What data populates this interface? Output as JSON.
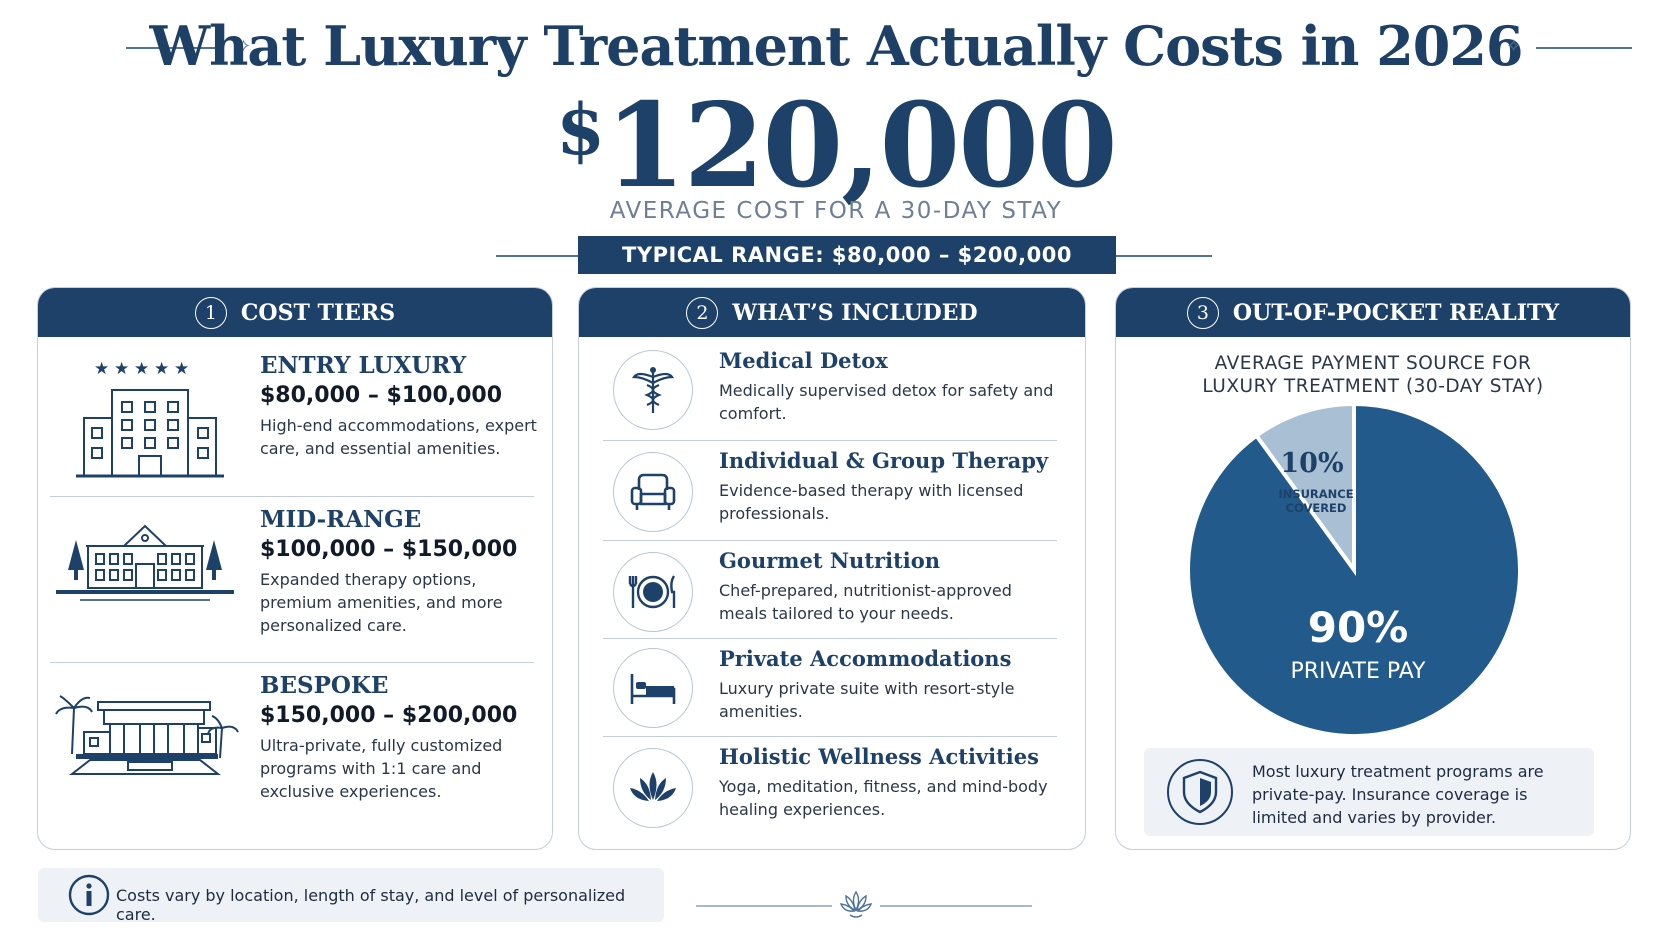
{
  "header": {
    "title": "What Luxury Treatment Actually Costs in 2026",
    "currency_symbol": "$",
    "amount": "120,000",
    "amount_label": "AVERAGE COST FOR A 30-DAY STAY",
    "range_label": "TYPICAL RANGE: $80,000 – $200,000"
  },
  "colors": {
    "navy": "#1e4169",
    "light_blue": "#a9c0d4",
    "pie_main": "#235a8c",
    "panel_border": "#c3cfdc"
  },
  "cost_tiers": {
    "number": "1",
    "heading": "COST TIERS",
    "tiers": [
      {
        "name": "ENTRY LUXURY",
        "price": "$80,000 – $100,000",
        "description": "High-end accommodations, expert care, and essential amenities.",
        "icon": "hotel-building-icon"
      },
      {
        "name": "MID-RANGE",
        "price": "$100,000 – $150,000",
        "description": "Expanded therapy options, premium amenities, and more personalized care.",
        "icon": "estate-mansion-icon"
      },
      {
        "name": "BESPOKE",
        "price": "$150,000 – $200,000",
        "description": "Ultra-private, fully customized programs with 1:1 care and exclusive experiences.",
        "icon": "resort-villa-icon"
      }
    ]
  },
  "included": {
    "number": "2",
    "heading": "WHAT’S INCLUDED",
    "items": [
      {
        "title": "Medical Detox",
        "description": "Medically supervised detox for safety and comfort.",
        "icon": "caduceus-icon"
      },
      {
        "title": "Individual & Group Therapy",
        "description": "Evidence-based therapy with licensed professionals.",
        "icon": "armchair-icon"
      },
      {
        "title": "Gourmet Nutrition",
        "description": "Chef-prepared, nutritionist-approved meals tailored to your needs.",
        "icon": "plate-utensils-icon"
      },
      {
        "title": "Private Accommodations",
        "description": "Luxury private suite with resort-style amenities.",
        "icon": "bed-icon"
      },
      {
        "title": "Holistic Wellness Activities",
        "description": "Yoga, meditation, fitness, and mind-body healing experiences.",
        "icon": "lotus-icon"
      }
    ]
  },
  "out_of_pocket": {
    "number": "3",
    "heading": "OUT-OF-POCKET REALITY",
    "note": "Most luxury treatment programs are private-pay. Insurance coverage is limited and varies by provider.",
    "note_icon": "shield-icon"
  },
  "chart_data": {
    "type": "pie",
    "title": "AVERAGE PAYMENT SOURCE FOR LUXURY TREATMENT (30-DAY STAY)",
    "slices": [
      {
        "pct_label": "90%",
        "label": "PRIVATE PAY",
        "value": 90,
        "color": "#235a8c"
      },
      {
        "pct_label": "10%",
        "label": "INSURANCE COVERED",
        "value": 10,
        "color": "#a9c0d4"
      }
    ]
  },
  "footer": {
    "note": "Costs vary by location, length of stay, and level of personalized care.",
    "icon": "info-icon",
    "ornament": "lotus-ornament-icon"
  }
}
